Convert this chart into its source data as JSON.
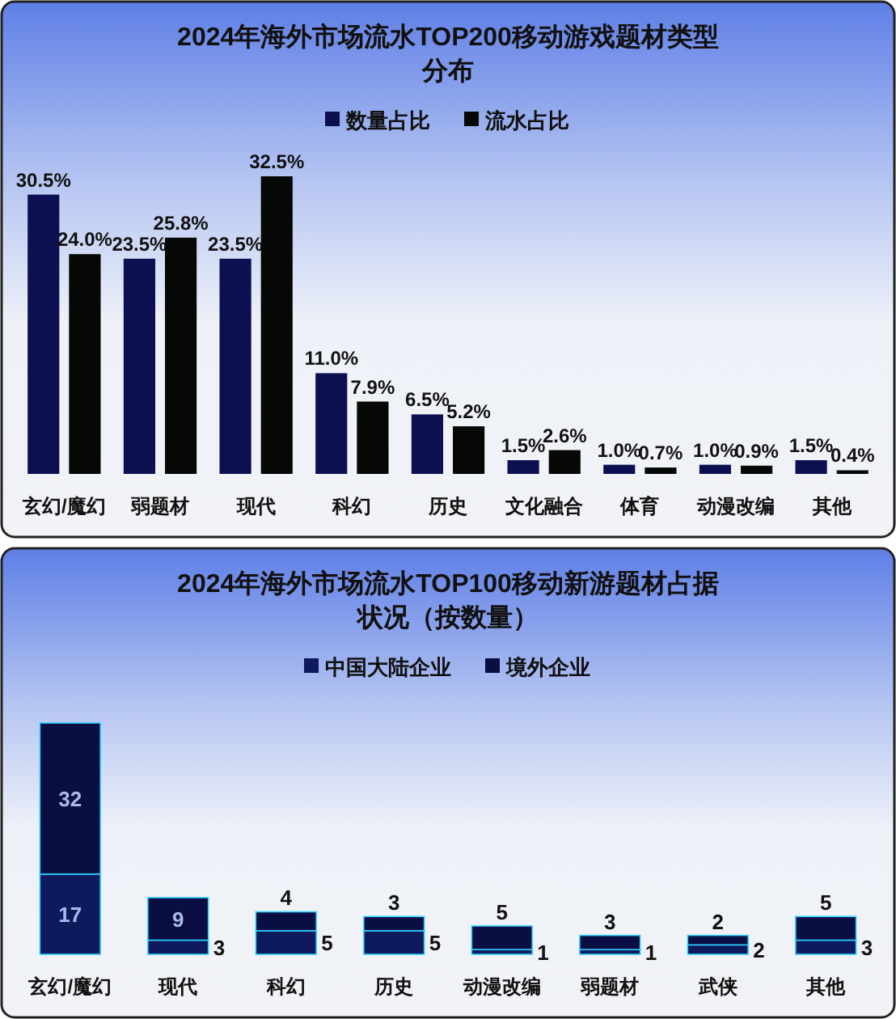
{
  "chart_data": [
    {
      "type": "bar",
      "title": "2024年海外市场流水TOP200移动游戏题材类型分布",
      "categories": [
        "玄幻/魔幻",
        "弱题材",
        "现代",
        "科幻",
        "历史",
        "文化融合",
        "体育",
        "动漫改编",
        "其他"
      ],
      "legend": "top",
      "series": [
        {
          "name": "数量占比",
          "color": "#0c1050",
          "values": [
            30.5,
            23.5,
            23.5,
            11.0,
            6.5,
            1.5,
            1.0,
            1.0,
            1.5
          ],
          "value_labels": [
            "30.5%",
            "23.5%",
            "23.5%",
            "11.0%",
            "6.5%",
            "1.5%",
            "1.0%",
            "1.0%",
            "1.5%"
          ]
        },
        {
          "name": "流水占比",
          "color": "#050805",
          "values": [
            24.0,
            25.8,
            32.5,
            7.9,
            5.2,
            2.6,
            0.7,
            0.9,
            0.4
          ],
          "value_labels": [
            "24.0%",
            "25.8%",
            "32.5%",
            "7.9%",
            "5.2%",
            "2.6%",
            "0.7%",
            "0.9%",
            "0.4%"
          ]
        }
      ]
    },
    {
      "type": "bar",
      "title": "2024年海外市场流水TOP100移动新游题材占据状况（按数量）",
      "categories": [
        "玄幻/魔幻",
        "现代",
        "科幻",
        "历史",
        "动漫改编",
        "弱题材",
        "武侠",
        "其他"
      ],
      "legend": "top",
      "stacked": true,
      "data_labels": true,
      "series": [
        {
          "name": "中国大陆企业",
          "color": "#0e1a5c",
          "values": [
            17,
            3,
            5,
            5,
            1,
            1,
            2,
            3
          ]
        },
        {
          "name": "境外企业",
          "color": "#0a0e42",
          "values": [
            32,
            9,
            4,
            3,
            5,
            3,
            2,
            5
          ]
        }
      ]
    }
  ]
}
